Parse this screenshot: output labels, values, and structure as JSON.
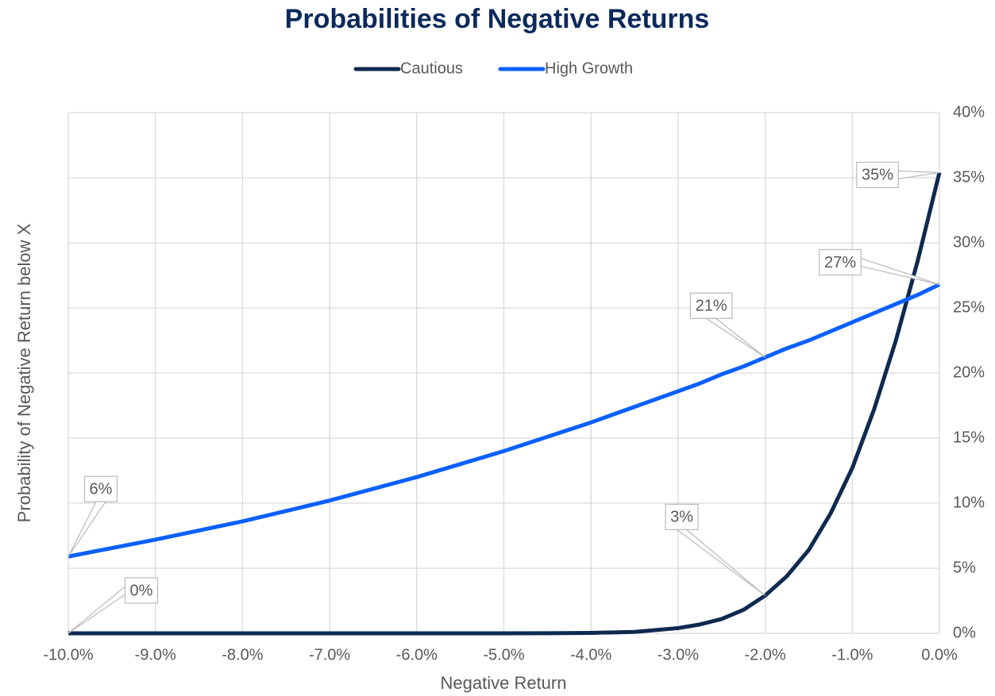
{
  "chart_data": {
    "type": "line",
    "title": "Probabilities of Negative Returns",
    "x_label": "Negative Return",
    "y_label": "Probability of Negative Return below X",
    "x": [
      -10,
      -9,
      -8,
      -7,
      -6,
      -5,
      -4.5,
      -4,
      -3.5,
      -3,
      -2.75,
      -2.5,
      -2.25,
      -2,
      -1.75,
      -1.5,
      -1.25,
      -1,
      -0.75,
      -0.5,
      -0.25,
      0
    ],
    "series": [
      {
        "name": "Cautious",
        "color": "#0f2a50",
        "values": [
          0,
          0,
          0,
          0,
          0,
          0,
          0.01,
          0.03,
          0.11,
          0.4,
          0.68,
          1.1,
          1.8,
          2.9,
          4.4,
          6.4,
          9.2,
          12.7,
          17.2,
          22.5,
          28.6,
          35.4
        ],
        "value_labels": [
          "0%",
          null,
          null,
          null,
          null,
          null,
          null,
          null,
          null,
          null,
          null,
          null,
          null,
          "3%",
          null,
          null,
          null,
          null,
          null,
          null,
          null,
          "35%"
        ]
      },
      {
        "name": "High Growth",
        "color": "#0a60ff",
        "values": [
          5.9,
          7.2,
          8.6,
          10.2,
          12.0,
          14.0,
          15.1,
          16.2,
          17.4,
          18.6,
          19.2,
          19.9,
          20.5,
          21.2,
          21.9,
          22.5,
          23.2,
          23.9,
          24.6,
          25.3,
          26.0,
          26.8
        ],
        "value_labels": [
          "6%",
          null,
          null,
          null,
          null,
          null,
          null,
          null,
          null,
          null,
          null,
          null,
          null,
          "21%",
          null,
          null,
          null,
          null,
          null,
          null,
          null,
          "27%"
        ]
      }
    ],
    "xlim": [
      -10,
      0
    ],
    "xticks": [
      {
        "value": -10,
        "label": "-10.0%"
      },
      {
        "value": -9,
        "label": "-9.0%"
      },
      {
        "value": -8,
        "label": "-8.0%"
      },
      {
        "value": -7,
        "label": "-7.0%"
      },
      {
        "value": -6,
        "label": "-6.0%"
      },
      {
        "value": -5,
        "label": "-5.0%"
      },
      {
        "value": -4,
        "label": "-4.0%"
      },
      {
        "value": -3,
        "label": "-3.0%"
      },
      {
        "value": -2,
        "label": "-2.0%"
      },
      {
        "value": -1,
        "label": "-1.0%"
      },
      {
        "value": 0,
        "label": "0.0%"
      }
    ],
    "ylim": [
      0,
      40
    ],
    "yticks": [
      {
        "value": 0,
        "label": "0%"
      },
      {
        "value": 5,
        "label": "5%"
      },
      {
        "value": 10,
        "label": "10%"
      },
      {
        "value": 15,
        "label": "15%"
      },
      {
        "value": 20,
        "label": "20%"
      },
      {
        "value": 25,
        "label": "25%"
      },
      {
        "value": 30,
        "label": "30%"
      },
      {
        "value": 35,
        "label": "35%"
      },
      {
        "value": 40,
        "label": "40%"
      }
    ],
    "grid": true,
    "legend": "top"
  }
}
